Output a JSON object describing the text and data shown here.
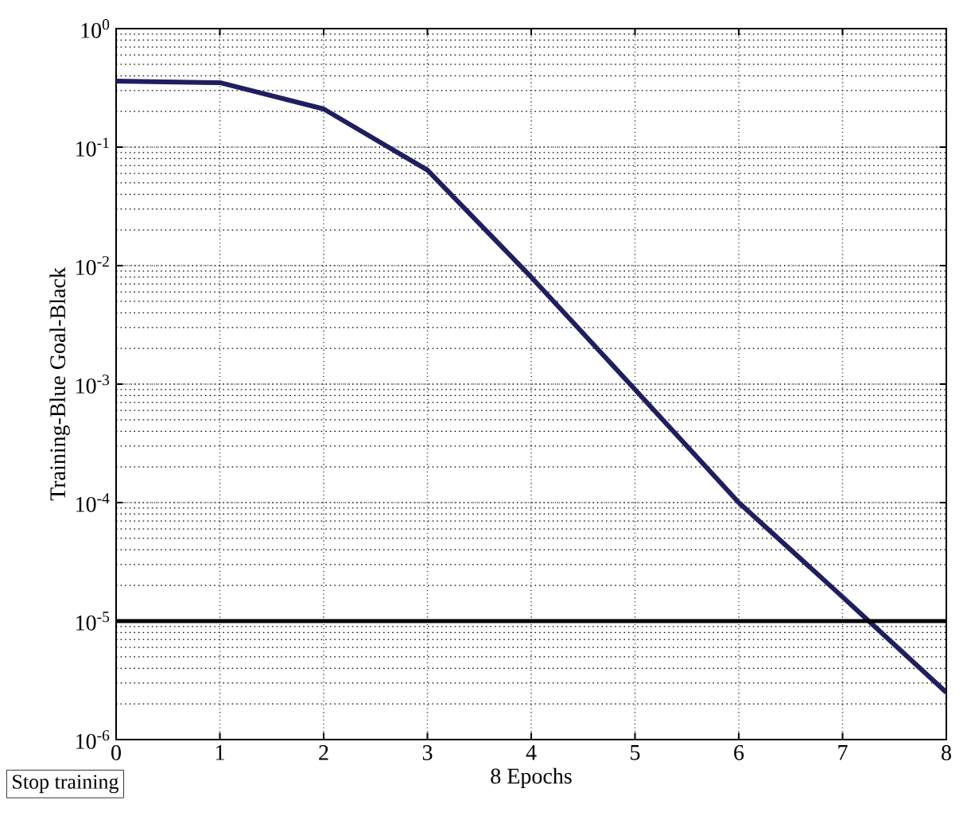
{
  "chart_data": {
    "type": "line",
    "xlabel": "8 Epochs",
    "ylabel": "Training-Blue Goal-Black",
    "annotations": [
      "Stop training"
    ],
    "x": [
      0,
      1,
      2,
      3,
      4,
      5,
      6,
      7,
      8
    ],
    "series": [
      {
        "color": "#1f1f5f",
        "values": [
          0.36,
          0.35,
          0.21,
          0.064,
          0.008,
          0.0009,
          0.0001,
          1.6e-05,
          2.5e-06
        ]
      }
    ],
    "xlim": [
      0,
      8
    ],
    "ylim": [
      1e-06,
      1
    ],
    "xticks": [
      0,
      1,
      2,
      3,
      4,
      5,
      6,
      7,
      8
    ],
    "yticks": [
      {
        "value": 1e-06,
        "label": "10$^{-6}$"
      },
      {
        "value": 1e-05,
        "label": "10$^{-5}$"
      },
      {
        "value": 0.0001,
        "label": "10$^{-4}$"
      },
      {
        "value": 0.001,
        "label": "10$^{-3}$"
      },
      {
        "value": 0.01,
        "label": "10$^{-2}$"
      },
      {
        "value": 0.1,
        "label": "10$^{-1}$"
      },
      {
        "value": 1,
        "label": "10$^{0}$"
      }
    ],
    "log": "y",
    "grid": true,
    "marker": "none",
    "line_style": "solid",
    "ref_lines": [
      {
        "axis": "y",
        "value": 1e-05,
        "color": "#000000"
      }
    ]
  }
}
